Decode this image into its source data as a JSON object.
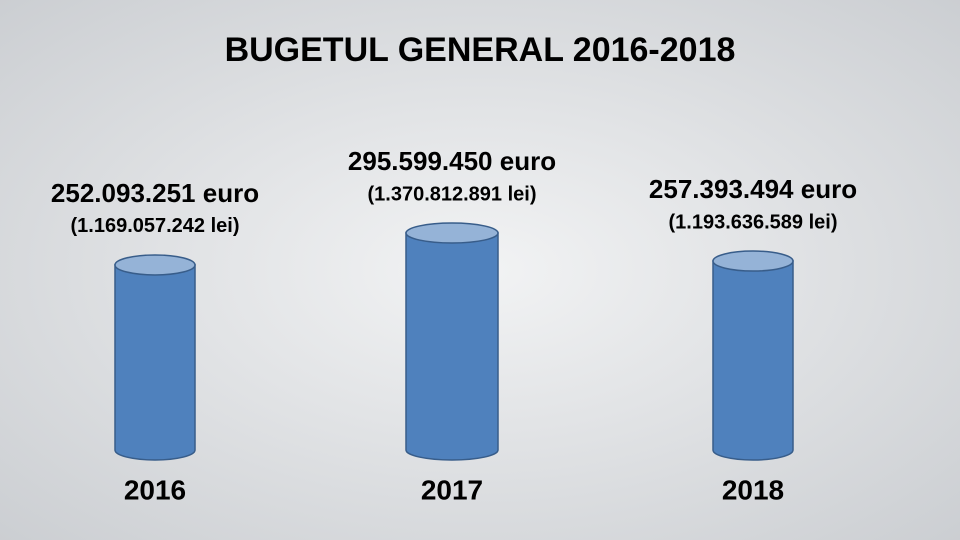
{
  "chart_data": {
    "type": "cylinder",
    "title": "BUGETUL GENERAL 2016-2018",
    "categories": [
      "2016",
      "2017",
      "2018"
    ],
    "values": [
      252093251,
      295599450,
      257393494
    ],
    "value_labels": [
      "252.093.251 euro",
      "295.599.450 euro",
      "257.393.494 euro"
    ],
    "secondary_labels": [
      "(1.169.057.242 lei)",
      "(1.370.812.891 lei)",
      "(1.193.636.589 lei)"
    ],
    "color": "#4f81bd",
    "top_color": "#95b3d7"
  }
}
